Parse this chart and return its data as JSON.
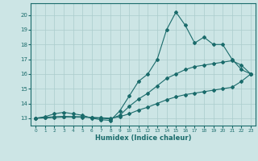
{
  "xlabel": "Humidex (Indice chaleur)",
  "xlim": [
    -0.5,
    23.5
  ],
  "ylim": [
    12.5,
    20.8
  ],
  "yticks": [
    13,
    14,
    15,
    16,
    17,
    18,
    19,
    20
  ],
  "xticks": [
    0,
    1,
    2,
    3,
    4,
    5,
    6,
    7,
    8,
    9,
    10,
    11,
    12,
    13,
    14,
    15,
    16,
    17,
    18,
    19,
    20,
    21,
    22,
    23
  ],
  "background_color": "#cce5e5",
  "grid_color": "#aacccc",
  "line_color": "#1a6b6b",
  "line1": [
    13.0,
    13.1,
    13.3,
    13.4,
    13.3,
    13.2,
    13.0,
    12.9,
    12.85,
    13.5,
    14.5,
    15.5,
    16.0,
    17.0,
    19.0,
    20.2,
    19.3,
    18.1,
    18.5,
    18.0,
    18.0,
    17.0,
    16.3,
    16.0
  ],
  "line2": [
    13.0,
    13.05,
    13.1,
    13.12,
    13.1,
    13.1,
    13.05,
    13.0,
    12.95,
    13.2,
    13.8,
    14.3,
    14.7,
    15.2,
    15.7,
    16.0,
    16.3,
    16.5,
    16.6,
    16.7,
    16.8,
    16.9,
    16.6,
    16.0
  ],
  "line3": [
    13.0,
    13.02,
    13.05,
    13.08,
    13.08,
    13.07,
    13.05,
    13.03,
    13.0,
    13.1,
    13.3,
    13.55,
    13.75,
    14.0,
    14.25,
    14.45,
    14.6,
    14.7,
    14.8,
    14.9,
    15.0,
    15.1,
    15.5,
    16.0
  ],
  "tick_fontsize": 5,
  "xlabel_fontsize": 6
}
